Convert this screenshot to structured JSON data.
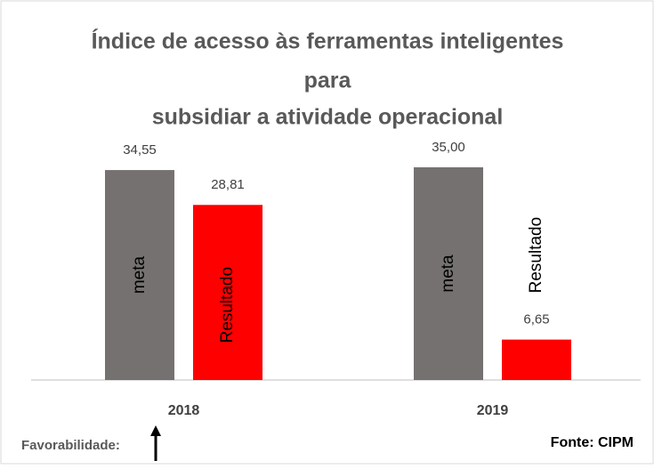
{
  "chart_data": {
    "type": "bar",
    "title": [
      "Índice de acesso às ferramentas inteligentes",
      "para",
      "subsidiar a atividade operacional"
    ],
    "categories": [
      "2018",
      "2019"
    ],
    "series": [
      {
        "name": "meta",
        "color": "#767171",
        "values": [
          34.55,
          35.0
        ],
        "value_labels": [
          "34,55",
          "35,00"
        ]
      },
      {
        "name": "Resultado",
        "color": "#ff0000",
        "values": [
          28.81,
          6.65
        ],
        "value_labels": [
          "28,81",
          "6,65"
        ]
      }
    ],
    "annotations": [
      "Favorabilidade:",
      "Fonte: CIPM"
    ]
  }
}
